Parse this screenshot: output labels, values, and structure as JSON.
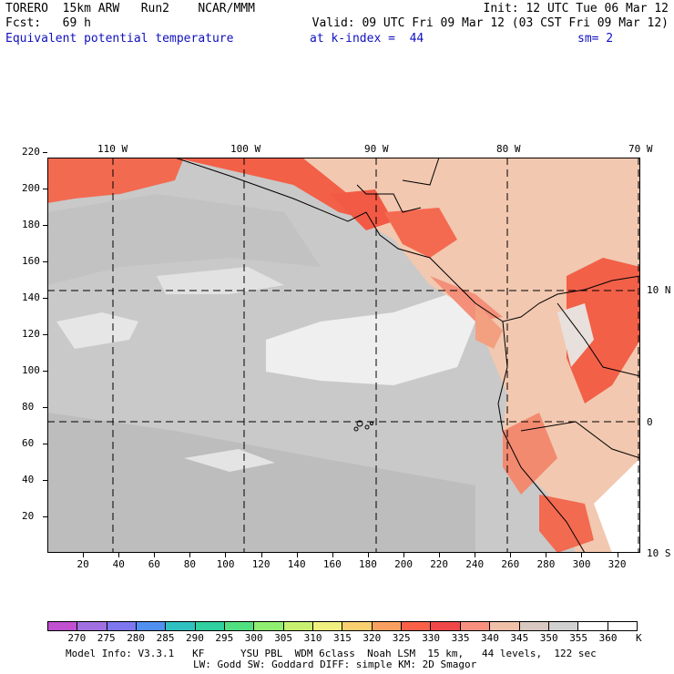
{
  "header": {
    "line1_left": "TORERO  15km ARW   Run2    NCAR/MMM",
    "line1_right": "Init: 12 UTC Tue 06 Mar 12",
    "line2_left": "Fcst:   69 h",
    "line2_right": "Valid: 09 UTC Fri 09 Mar 12 (03 CST Fri 09 Mar 12)",
    "field": "Equivalent potential temperature",
    "level": "at k-index =  44",
    "smooth": "sm= 2"
  },
  "map": {
    "lon_labels": [
      "110 W",
      "100 W",
      "90 W",
      "80 W",
      "70 W"
    ],
    "lat_labels": [
      "10 N",
      "0",
      "10 S"
    ],
    "y_ticks": [
      "220",
      "200",
      "180",
      "160",
      "140",
      "120",
      "100",
      "80",
      "60",
      "40",
      "20"
    ],
    "x_ticks": [
      "20",
      "40",
      "60",
      "80",
      "100",
      "120",
      "140",
      "160",
      "180",
      "200",
      "220",
      "240",
      "260",
      "280",
      "300",
      "320"
    ],
    "islands_icon": "galapagos-islands-icon"
  },
  "colorbar": {
    "unit": "K",
    "labels": [
      "270",
      "275",
      "280",
      "285",
      "290",
      "295",
      "300",
      "305",
      "310",
      "315",
      "320",
      "325",
      "330",
      "335",
      "340",
      "345",
      "350",
      "355",
      "360"
    ],
    "colors": [
      "#c050d0",
      "#a070e0",
      "#7d78f0",
      "#5090f0",
      "#30c0c0",
      "#30d0a0",
      "#50e080",
      "#90ee70",
      "#c8f070",
      "#f0f080",
      "#f8d070",
      "#f8a060",
      "#f86048",
      "#f04848",
      "#f89080",
      "#f0c0a8",
      "#d8c8c0",
      "#d0d0d0",
      "#ffffff",
      "#ffffff"
    ]
  },
  "footer": {
    "line1": "Model Info: V3.3.1   KF      YSU PBL  WDM 6class  Noah LSM  15 km,   44 levels,  122 sec",
    "line2": "LW: Godd SW: Goddard DIFF: simple KM: 2D Smagor"
  }
}
